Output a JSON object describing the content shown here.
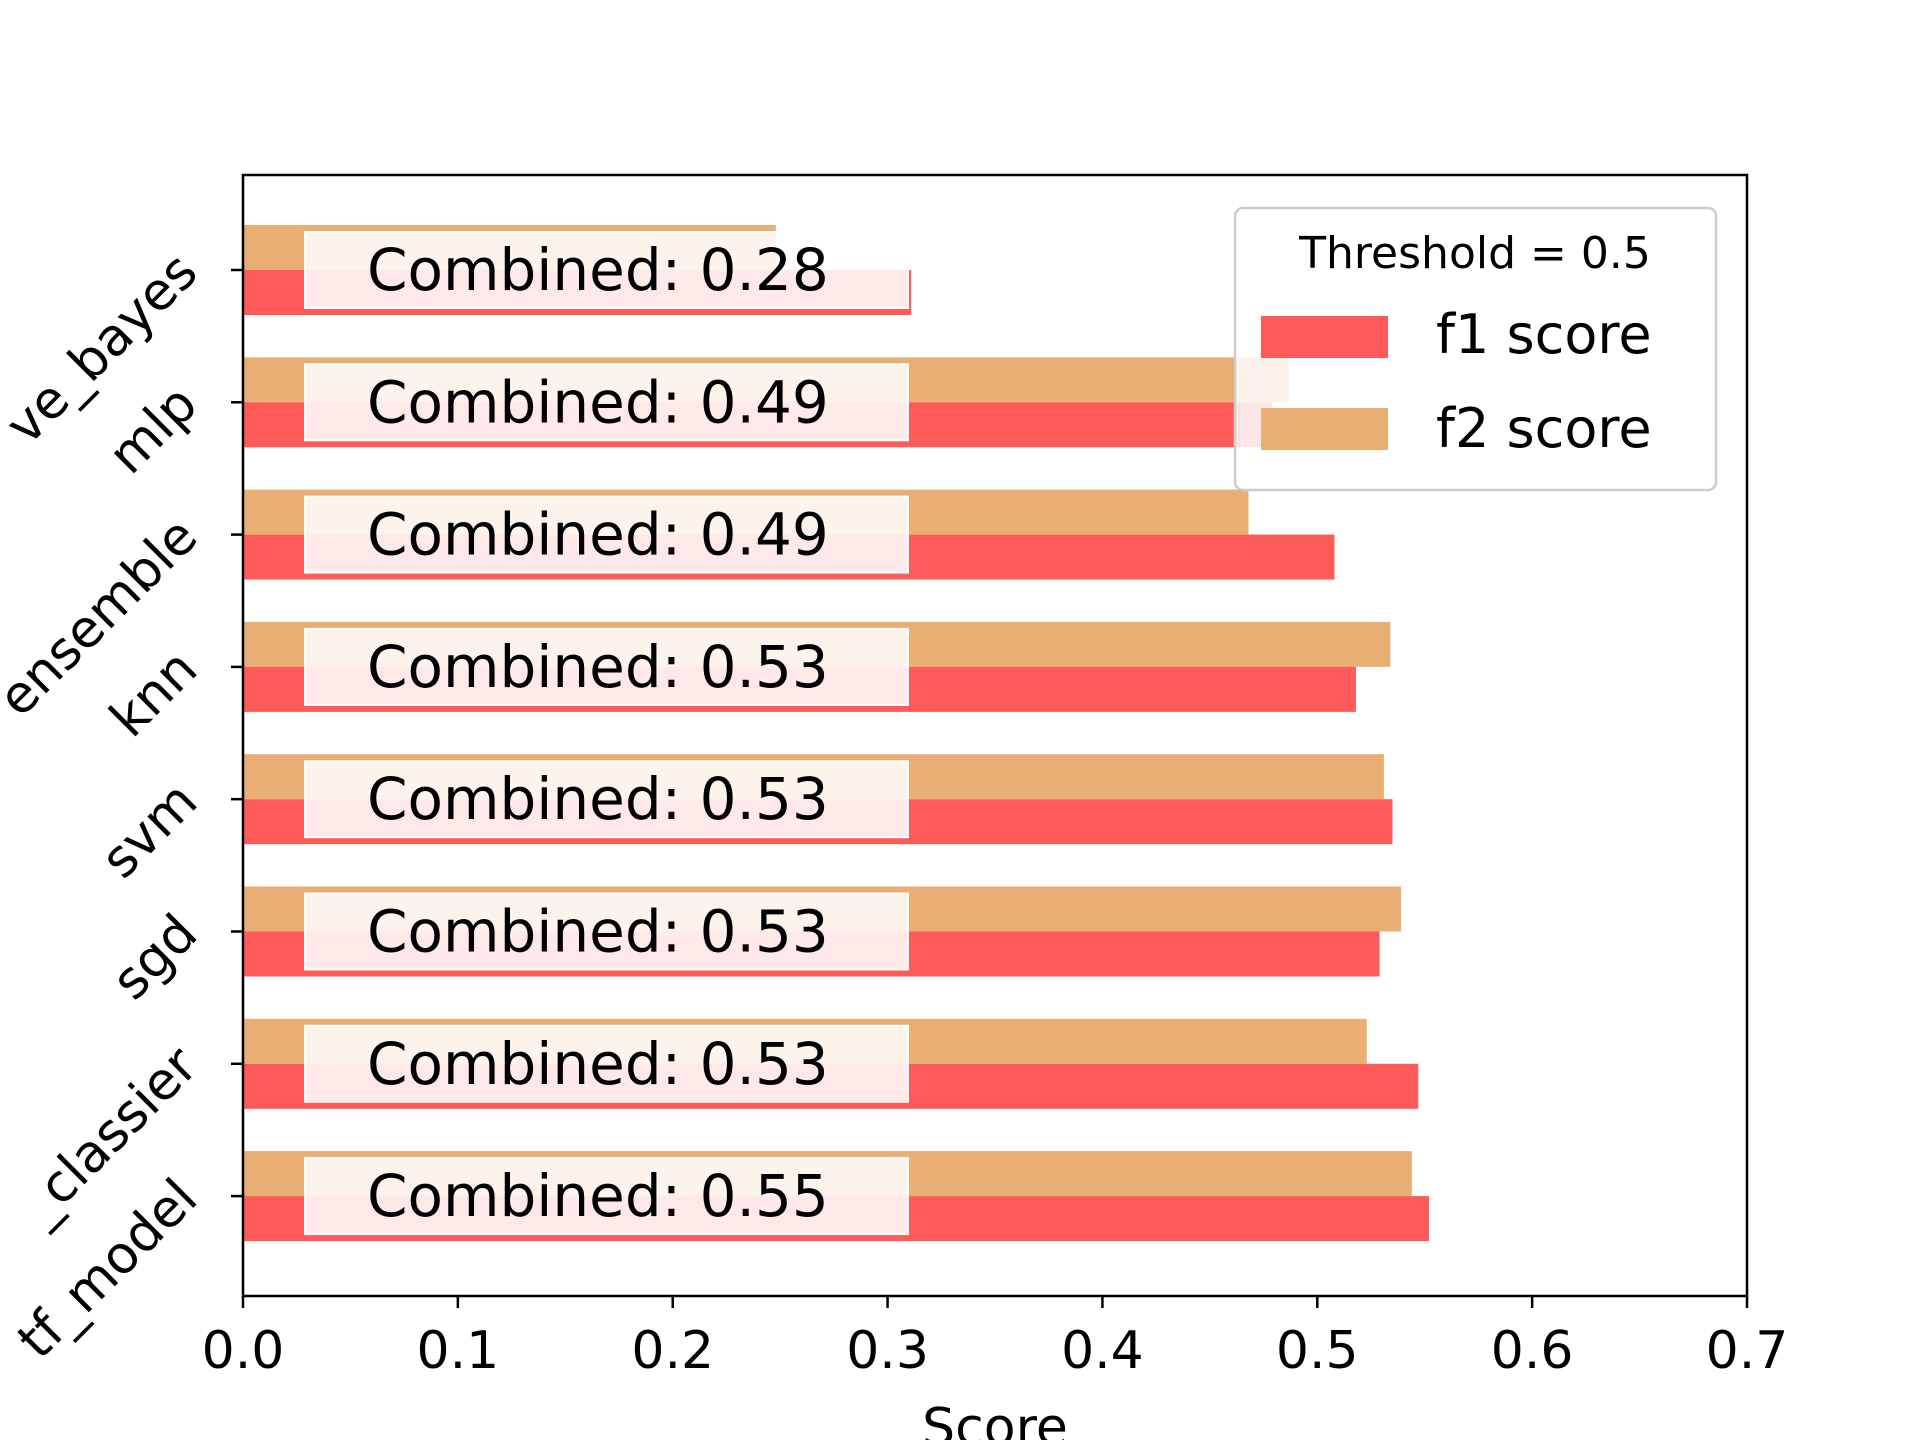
{
  "chart_data": {
    "type": "bar",
    "orientation": "horizontal",
    "categories": [
      "naive_bayes",
      "mlp",
      "ensemble",
      "knn",
      "svm",
      "sgd",
      "tf_classier",
      "tf_model"
    ],
    "category_labels_visible": [
      "ve_bayes",
      "mlp",
      "ensemble",
      "knn",
      "svm",
      "sgd",
      "_classier",
      "tf_model"
    ],
    "series": [
      {
        "name": "f1 score",
        "color": "#ff5a5a",
        "values": [
          0.311,
          0.479,
          0.508,
          0.518,
          0.535,
          0.529,
          0.547,
          0.552
        ]
      },
      {
        "name": "f2 score",
        "color": "#e9ae74",
        "values": [
          0.248,
          0.487,
          0.468,
          0.534,
          0.531,
          0.539,
          0.523,
          0.544
        ]
      }
    ],
    "annotations": [
      "Combined: 0.28",
      "Combined: 0.49",
      "Combined: 0.49",
      "Combined: 0.53",
      "Combined: 0.53",
      "Combined: 0.53",
      "Combined: 0.53",
      "Combined: 0.55"
    ],
    "xlabel": "Score",
    "ylabel": "",
    "xlim": [
      0.0,
      0.7
    ],
    "xticks": [
      "0.0",
      "0.1",
      "0.2",
      "0.3",
      "0.4",
      "0.5",
      "0.6",
      "0.7"
    ],
    "legend": {
      "title": "Threshold = 0.5",
      "placement": "top-right"
    },
    "grid": false
  }
}
